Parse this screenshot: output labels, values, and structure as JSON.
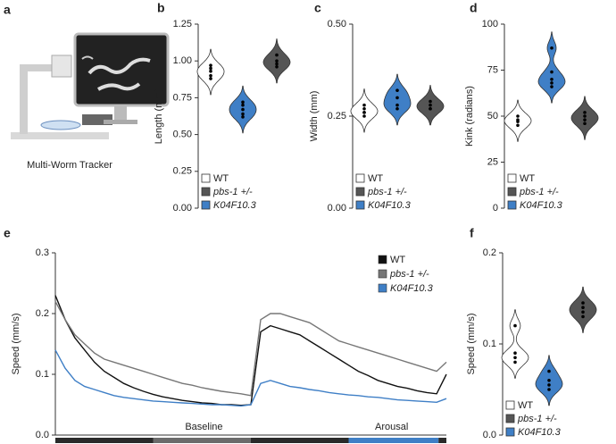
{
  "panel_a": {
    "panel": "a",
    "caption": "Multi-Worm Tracker"
  },
  "chart_data": [
    {
      "type": "violin",
      "panel": "b",
      "ylabel": "Length (mm)",
      "ylim": [
        0,
        1.25
      ],
      "yticks": [
        {
          "value": 0,
          "label": "0.00"
        },
        {
          "value": 0.25,
          "label": "0.25"
        },
        {
          "value": 0.5,
          "label": "0.50"
        },
        {
          "value": 0.75,
          "label": "0.75"
        },
        {
          "value": 1,
          "label": "1.00"
        },
        {
          "value": 1.25,
          "label": "1.25"
        }
      ],
      "plot_order": [
        0,
        2,
        1
      ],
      "series": [
        {
          "name": "WT",
          "color": "#ffffff",
          "values": [
            0.97,
            0.95,
            0.93,
            0.9,
            0.88
          ]
        },
        {
          "name": "pbs-1 +/-",
          "color": "#555555",
          "values": [
            1.04,
            1.0,
            0.98,
            0.96
          ]
        },
        {
          "name": "K04F10.3",
          "color": "#3f7fc6",
          "values": [
            0.72,
            0.7,
            0.67,
            0.64,
            0.62
          ]
        }
      ]
    },
    {
      "type": "violin",
      "panel": "c",
      "ylabel": "Width (mm)",
      "ylim": [
        0,
        0.5
      ],
      "yticks": [
        {
          "value": 0,
          "label": "0.00"
        },
        {
          "value": 0.25,
          "label": "0.25"
        },
        {
          "value": 0.5,
          "label": "0.50"
        }
      ],
      "plot_order": [
        0,
        2,
        1
      ],
      "series": [
        {
          "name": "WT",
          "color": "#ffffff",
          "values": [
            0.28,
            0.27,
            0.26,
            0.26,
            0.25
          ]
        },
        {
          "name": "pbs-1 +/-",
          "color": "#555555",
          "values": [
            0.29,
            0.28,
            0.27,
            0.27
          ]
        },
        {
          "name": "K04F10.3",
          "color": "#3f7fc6",
          "values": [
            0.32,
            0.3,
            0.28,
            0.27
          ]
        }
      ]
    },
    {
      "type": "violin",
      "panel": "d",
      "ylabel": "Kink (radians)",
      "ylim": [
        0,
        100
      ],
      "yticks": [
        0,
        25,
        50,
        75,
        100
      ],
      "plot_order": [
        0,
        2,
        1
      ],
      "series": [
        {
          "name": "WT",
          "color": "#ffffff",
          "values": [
            50,
            48,
            47,
            45
          ]
        },
        {
          "name": "pbs-1 +/-",
          "color": "#555555",
          "values": [
            52,
            50,
            48,
            46
          ]
        },
        {
          "name": "K04F10.3",
          "color": "#3f7fc6",
          "values": [
            87,
            74,
            70,
            68,
            66
          ]
        }
      ]
    },
    {
      "type": "line",
      "panel": "e",
      "ylabel": "Speed (mm/s)",
      "ylim": [
        0,
        0.3
      ],
      "yticks": [
        {
          "value": 0,
          "label": "0.0"
        },
        {
          "value": 0.1,
          "label": "0.1"
        },
        {
          "value": 0.2,
          "label": "0.2"
        },
        {
          "value": 0.3,
          "label": "0.3"
        }
      ],
      "annotations": [
        "Baseline",
        "Arousal"
      ],
      "series": [
        {
          "name": "WT",
          "color": "#111111",
          "values": [
            0.23,
            0.19,
            0.16,
            0.14,
            0.12,
            0.105,
            0.095,
            0.085,
            0.078,
            0.072,
            0.067,
            0.063,
            0.06,
            0.057,
            0.055,
            0.053,
            0.052,
            0.05,
            0.05,
            0.049,
            0.05,
            0.17,
            0.18,
            0.175,
            0.17,
            0.165,
            0.155,
            0.145,
            0.135,
            0.125,
            0.115,
            0.105,
            0.098,
            0.09,
            0.085,
            0.08,
            0.077,
            0.073,
            0.07,
            0.068,
            0.1
          ]
        },
        {
          "name": "pbs-1 +/-",
          "color": "#777777",
          "values": [
            0.22,
            0.19,
            0.165,
            0.15,
            0.135,
            0.125,
            0.12,
            0.115,
            0.11,
            0.105,
            0.1,
            0.095,
            0.09,
            0.085,
            0.082,
            0.078,
            0.075,
            0.072,
            0.07,
            0.068,
            0.065,
            0.19,
            0.2,
            0.2,
            0.195,
            0.19,
            0.185,
            0.175,
            0.165,
            0.155,
            0.15,
            0.145,
            0.14,
            0.135,
            0.13,
            0.125,
            0.12,
            0.115,
            0.11,
            0.105,
            0.12
          ]
        },
        {
          "name": "K04F10.3",
          "color": "#3f7fc6",
          "values": [
            0.14,
            0.11,
            0.09,
            0.08,
            0.075,
            0.07,
            0.065,
            0.062,
            0.06,
            0.058,
            0.056,
            0.055,
            0.054,
            0.053,
            0.052,
            0.051,
            0.05,
            0.05,
            0.049,
            0.048,
            0.05,
            0.085,
            0.09,
            0.085,
            0.08,
            0.078,
            0.075,
            0.073,
            0.07,
            0.068,
            0.066,
            0.065,
            0.063,
            0.062,
            0.06,
            0.058,
            0.057,
            0.056,
            0.055,
            0.054,
            0.06
          ]
        }
      ]
    },
    {
      "type": "violin",
      "panel": "f",
      "ylabel": "Speed (mm/s)",
      "ylim": [
        0,
        0.2
      ],
      "yticks": [
        {
          "value": 0,
          "label": "0.0"
        },
        {
          "value": 0.1,
          "label": "0.1"
        },
        {
          "value": 0.2,
          "label": "0.2"
        }
      ],
      "plot_order": [
        0,
        2,
        1
      ],
      "series": [
        {
          "name": "WT",
          "color": "#ffffff",
          "values": [
            0.12,
            0.09,
            0.085,
            0.08
          ]
        },
        {
          "name": "pbs-1 +/-",
          "color": "#555555",
          "values": [
            0.145,
            0.14,
            0.135,
            0.13
          ]
        },
        {
          "name": "K04F10.3",
          "color": "#3f7fc6",
          "values": [
            0.07,
            0.06,
            0.055,
            0.05
          ]
        }
      ]
    }
  ]
}
